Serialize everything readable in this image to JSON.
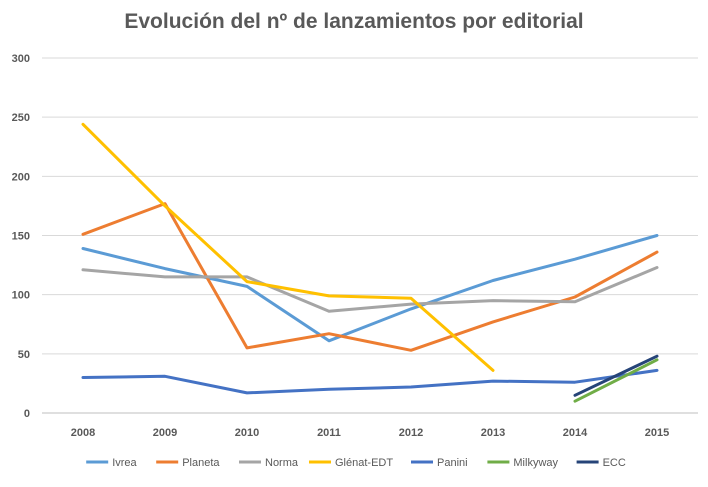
{
  "chart_data": {
    "type": "line",
    "title": "Evolución del nº de lanzamientos por editorial",
    "xlabel": "",
    "ylabel": "",
    "x": [
      "2008",
      "2009",
      "2010",
      "2011",
      "2012",
      "2013",
      "2014",
      "2015"
    ],
    "ylim": [
      0,
      300
    ],
    "yticks": [
      0,
      50,
      100,
      150,
      200,
      250,
      300
    ],
    "grid": true,
    "legend_position": "bottom",
    "series": [
      {
        "name": "Ivrea",
        "color": "#5B9BD5",
        "values": [
          139,
          122,
          107,
          61,
          88,
          112,
          130,
          150
        ]
      },
      {
        "name": "Planeta",
        "color": "#ED7D31",
        "values": [
          151,
          177,
          55,
          67,
          53,
          77,
          98,
          136
        ]
      },
      {
        "name": "Norma",
        "color": "#A5A5A5",
        "values": [
          121,
          115,
          115,
          86,
          92,
          95,
          94,
          123
        ]
      },
      {
        "name": "Glénat-EDT",
        "color": "#FFC000",
        "values": [
          244,
          175,
          111,
          99,
          97,
          36,
          null,
          null
        ]
      },
      {
        "name": "Panini",
        "color": "#4472C4",
        "values": [
          30,
          31,
          17,
          20,
          22,
          27,
          26,
          36
        ]
      },
      {
        "name": "Milkyway",
        "color": "#70AD47",
        "values": [
          null,
          null,
          null,
          null,
          null,
          null,
          10,
          45
        ]
      },
      {
        "name": "ECC",
        "color": "#264478",
        "values": [
          null,
          null,
          null,
          null,
          null,
          null,
          15,
          48
        ]
      }
    ]
  }
}
